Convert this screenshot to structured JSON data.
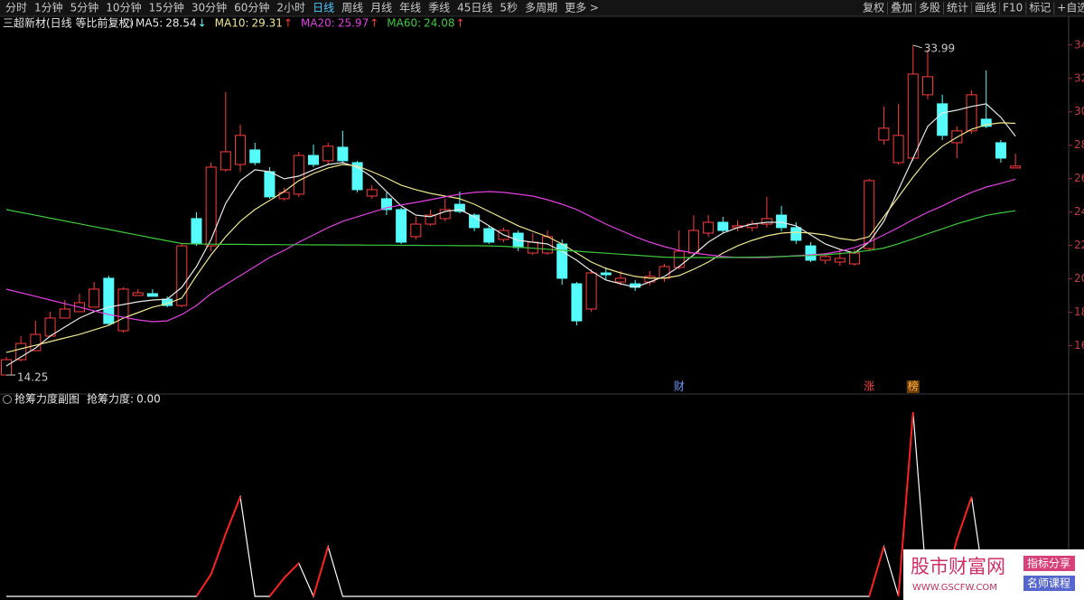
{
  "toolbar": {
    "periods": [
      "分时",
      "1分钟",
      "5分钟",
      "10分钟",
      "15分钟",
      "30分钟",
      "60分钟",
      "2小时",
      "日线",
      "周线",
      "月线",
      "年线",
      "季线",
      "45日线",
      "5秒",
      "多周期",
      "更多 >"
    ],
    "active_index": 8,
    "tools": [
      "复权",
      "叠加",
      "多股",
      "统计",
      "画线",
      "F10",
      "标记",
      "+自选"
    ]
  },
  "chart_data": [
    {
      "type": "candlestick",
      "title": "三超新材(日线 等比前复权)",
      "up_color": "#ff3c3c",
      "down_color": "#54fcfc",
      "ylim": [
        13.44,
        35.88
      ],
      "yticks": [
        16,
        18,
        20,
        22,
        24,
        26,
        28,
        30,
        32,
        34
      ],
      "open": [
        14.25,
        15.17,
        15.71,
        16.58,
        17.66,
        18.04,
        18.31,
        20.04,
        16.9,
        19.01,
        19.12,
        18.79,
        18.41,
        23.61,
        21.98,
        26.53,
        26.85,
        27.72,
        26.42,
        24.8,
        25.07,
        27.39,
        27.07,
        27.88,
        26.96,
        24.96,
        24.8,
        24.15,
        22.53,
        23.28,
        23.61,
        24.47,
        23.82,
        23.01,
        22.36,
        22.74,
        21.55,
        21.55,
        22.09,
        19.71,
        18.2,
        20.36,
        19.82,
        19.71,
        19.82,
        20.04,
        20.69,
        21.55,
        22.74,
        23.39,
        23.07,
        23.07,
        23.28,
        23.82,
        23.07,
        21.98,
        21.12,
        21.01,
        20.9,
        21.82,
        28.31,
        26.96,
        27.23,
        31.02,
        30.48,
        28.15,
        28.86,
        29.56,
        28.15,
        26.64
      ],
      "high": [
        15.33,
        16.58,
        17.49,
        18.04,
        18.74,
        19.12,
        19.82,
        20.2,
        19.5,
        19.39,
        19.39,
        18.96,
        22.09,
        23.99,
        26.96,
        31.18,
        29.23,
        28.15,
        26.69,
        25.45,
        27.61,
        28.04,
        28.15,
        28.86,
        27.07,
        25.61,
        25.18,
        24.26,
        23.72,
        24.15,
        24.8,
        25.23,
        23.93,
        23.18,
        23.07,
        22.9,
        22.74,
        22.9,
        22.36,
        19.82,
        20.58,
        20.69,
        20.47,
        19.93,
        20.47,
        20.9,
        22.9,
        23.82,
        23.82,
        23.72,
        23.5,
        23.5,
        24.91,
        24.37,
        23.39,
        22.2,
        21.55,
        21.77,
        21.77,
        25.99,
        30.32,
        30.48,
        33.99,
        33.72,
        31.02,
        29.13,
        31.29,
        32.48,
        28.31,
        27.5
      ],
      "low": [
        14.25,
        15.06,
        15.71,
        16.58,
        17.66,
        18.04,
        18.31,
        17.22,
        16.79,
        19.01,
        18.96,
        18.31,
        18.31,
        21.98,
        21.66,
        26.42,
        26.42,
        26.8,
        24.8,
        24.69,
        24.91,
        26.69,
        26.85,
        26.96,
        25.18,
        24.8,
        23.82,
        22.09,
        22.36,
        23.18,
        23.45,
        23.93,
        22.85,
        22.09,
        22.2,
        21.66,
        21.44,
        21.44,
        19.66,
        17.22,
        18.04,
        19.93,
        19.6,
        19.28,
        19.6,
        19.82,
        20.58,
        21.44,
        22.53,
        22.74,
        22.85,
        22.85,
        23.07,
        22.85,
        22.09,
        21.01,
        20.9,
        20.79,
        20.79,
        21.66,
        28.04,
        26.85,
        27.07,
        30.75,
        28.31,
        27.23,
        28.69,
        29.02,
        26.96,
        26.64
      ],
      "close": [
        15.17,
        16.14,
        16.68,
        17.66,
        18.2,
        18.58,
        19.39,
        17.33,
        19.39,
        19.17,
        18.96,
        18.41,
        21.98,
        22.09,
        26.69,
        27.61,
        28.59,
        26.96,
        24.91,
        25.18,
        27.39,
        26.85,
        27.94,
        27.07,
        25.34,
        25.34,
        24.15,
        22.2,
        23.28,
        23.82,
        24.15,
        24.04,
        23.07,
        22.2,
        22.9,
        21.88,
        22.2,
        22.53,
        20.04,
        17.49,
        20.36,
        20.25,
        20.04,
        19.5,
        20.15,
        20.74,
        21.66,
        22.9,
        23.39,
        22.9,
        23.18,
        23.28,
        23.61,
        23.07,
        22.31,
        21.12,
        21.34,
        21.23,
        21.55,
        25.88,
        29.02,
        28.59,
        32.26,
        32.1,
        28.59,
        28.86,
        31.02,
        29.13,
        27.23,
        26.75
      ],
      "series": [
        {
          "name": "MA5:",
          "color": "#e8e8e8",
          "trend": "↓",
          "trend_color": "#54fcfc",
          "values": [
            14.79,
            15.33,
            15.87,
            16.58,
            17.12,
            17.66,
            18.04,
            18.31,
            18.47,
            18.63,
            18.74,
            18.79,
            19.5,
            20.74,
            22.36,
            24.53,
            25.88,
            26.53,
            26.42,
            25.99,
            26.15,
            26.53,
            26.85,
            26.96,
            26.69,
            26.1,
            25.23,
            24.37,
            23.82,
            23.72,
            24.04,
            24.15,
            23.72,
            23.18,
            22.63,
            22.31,
            22.2,
            22.09,
            21.66,
            21.12,
            20.47,
            19.93,
            19.71,
            19.5,
            19.82,
            20.15,
            20.74,
            21.44,
            22.2,
            22.74,
            23.07,
            23.28,
            23.39,
            23.39,
            23.18,
            22.63,
            22.09,
            21.77,
            21.55,
            22.2,
            23.45,
            25.34,
            27.23,
            29.13,
            29.94,
            30.1,
            30.32,
            30.48,
            29.67,
            28.54
          ]
        },
        {
          "name": "MA10:",
          "color": "#f0e68c",
          "trend": "↑",
          "trend_color": "#ff3c3c",
          "values": [
            15.6,
            15.82,
            16.03,
            16.25,
            16.47,
            16.68,
            16.95,
            17.22,
            17.66,
            17.98,
            18.31,
            18.52,
            18.85,
            20.2,
            21.44,
            22.53,
            23.45,
            24.15,
            24.69,
            25.23,
            25.88,
            26.31,
            26.64,
            26.85,
            26.75,
            26.42,
            26.04,
            25.61,
            25.34,
            25.12,
            24.96,
            24.8,
            24.47,
            24.04,
            23.61,
            23.18,
            22.85,
            22.53,
            22.09,
            21.55,
            21.01,
            20.63,
            20.36,
            20.15,
            20.04,
            20.04,
            20.2,
            20.58,
            21.01,
            21.55,
            21.98,
            22.31,
            22.58,
            22.74,
            22.8,
            22.74,
            22.63,
            22.42,
            22.31,
            22.53,
            23.72,
            24.91,
            26.1,
            27.18,
            27.94,
            28.48,
            28.96,
            29.23,
            29.34,
            29.31
          ]
        },
        {
          "name": "MA20:",
          "color": "#e040e0",
          "trend": "↑",
          "trend_color": "#ff3c3c",
          "values": [
            19.39,
            19.17,
            18.96,
            18.74,
            18.52,
            18.31,
            18.09,
            17.87,
            17.71,
            17.55,
            17.44,
            17.49,
            17.87,
            18.41,
            19.12,
            19.66,
            20.2,
            20.74,
            21.28,
            21.71,
            22.2,
            22.63,
            23.07,
            23.45,
            23.72,
            23.99,
            24.26,
            24.42,
            24.58,
            24.74,
            24.91,
            25.07,
            25.18,
            25.23,
            25.18,
            25.07,
            24.96,
            24.74,
            24.47,
            24.15,
            23.72,
            23.28,
            22.9,
            22.53,
            22.2,
            21.93,
            21.71,
            21.55,
            21.44,
            21.34,
            21.28,
            21.28,
            21.28,
            21.34,
            21.39,
            21.44,
            21.5,
            21.66,
            21.88,
            22.2,
            22.63,
            23.07,
            23.55,
            23.99,
            24.37,
            24.8,
            25.18,
            25.5,
            25.72,
            25.97
          ]
        },
        {
          "name": "MA60:",
          "color": "#3cc83c",
          "trend": "↑",
          "trend_color": "#ff3c3c",
          "values": [
            24.15,
            23.98,
            23.81,
            23.64,
            23.47,
            23.3,
            23.13,
            22.96,
            22.79,
            22.62,
            22.45,
            22.28,
            22.12,
            22.09,
            22.08,
            22.07,
            22.07,
            22.06,
            22.06,
            22.05,
            22.05,
            22.04,
            22.04,
            22.03,
            22.03,
            22.02,
            22.02,
            22.01,
            22.01,
            22.0,
            22.0,
            21.99,
            21.99,
            21.98,
            21.95,
            21.9,
            21.84,
            21.78,
            21.72,
            21.66,
            21.6,
            21.54,
            21.48,
            21.42,
            21.36,
            21.3,
            21.28,
            21.28,
            21.28,
            21.28,
            21.29,
            21.3,
            21.32,
            21.34,
            21.37,
            21.4,
            21.45,
            21.52,
            21.6,
            21.7,
            21.85,
            22.1,
            22.4,
            22.7,
            23.0,
            23.3,
            23.55,
            23.8,
            23.95,
            24.08
          ]
        }
      ],
      "events": [
        null,
        null,
        null,
        null,
        null,
        null,
        null,
        null,
        null,
        null,
        null,
        null,
        null,
        null,
        null,
        null,
        null,
        null,
        null,
        null,
        null,
        null,
        null,
        null,
        null,
        null,
        null,
        null,
        null,
        null,
        null,
        null,
        null,
        null,
        null,
        null,
        null,
        null,
        null,
        null,
        null,
        null,
        null,
        null,
        null,
        null,
        {
          "label": "财",
          "color": "#6e9cff"
        },
        null,
        null,
        null,
        null,
        null,
        null,
        null,
        null,
        null,
        null,
        null,
        null,
        {
          "label": "涨",
          "color": "#ff3c3c"
        },
        null,
        null,
        {
          "label": "榜",
          "color": "#ffb040",
          "background": "#6b3d00"
        },
        null,
        null,
        null,
        null,
        null,
        null,
        null
      ]
    },
    {
      "type": "line",
      "title": "抢筹力度副图",
      "ylim": [
        0,
        103
      ],
      "series": [
        {
          "name": "抢筹力度:",
          "color": "#ffffff",
          "rise_color": "#ff2020",
          "values": [
            0,
            0,
            0,
            0,
            0,
            0,
            0,
            0,
            0,
            0,
            0,
            0,
            0,
            0,
            12,
            34,
            54,
            0,
            0,
            10,
            18,
            0,
            27,
            0,
            0,
            0,
            0,
            0,
            0,
            0,
            0,
            0,
            0,
            0,
            0,
            0,
            0,
            0,
            0,
            0,
            0,
            0,
            0,
            0,
            0,
            0,
            0,
            0,
            0,
            0,
            0,
            0,
            0,
            0,
            0,
            0,
            0,
            0,
            0,
            0,
            27,
            0,
            100,
            0,
            0,
            31,
            54,
            0,
            0,
            0
          ],
          "value_labels": [
            null,
            null,
            null,
            null,
            null,
            null,
            null,
            null,
            null,
            null,
            null,
            null,
            null,
            null,
            null,
            null,
            null,
            null,
            null,
            null,
            null,
            null,
            null,
            null,
            null,
            null,
            null,
            null,
            null,
            null,
            null,
            null,
            null,
            null,
            null,
            null,
            null,
            null,
            null,
            null,
            null,
            null,
            null,
            null,
            null,
            null,
            null,
            null,
            null,
            null,
            null,
            null,
            null,
            null,
            null,
            null,
            null,
            null,
            null,
            null,
            null,
            null,
            null,
            null,
            null,
            null,
            null,
            null,
            null,
            "0.00"
          ]
        }
      ]
    }
  ],
  "watermark": {
    "name": "股市财富网",
    "url": "WWW.GSCFW.COM",
    "badges": [
      "指标分享",
      "名师课程"
    ]
  }
}
